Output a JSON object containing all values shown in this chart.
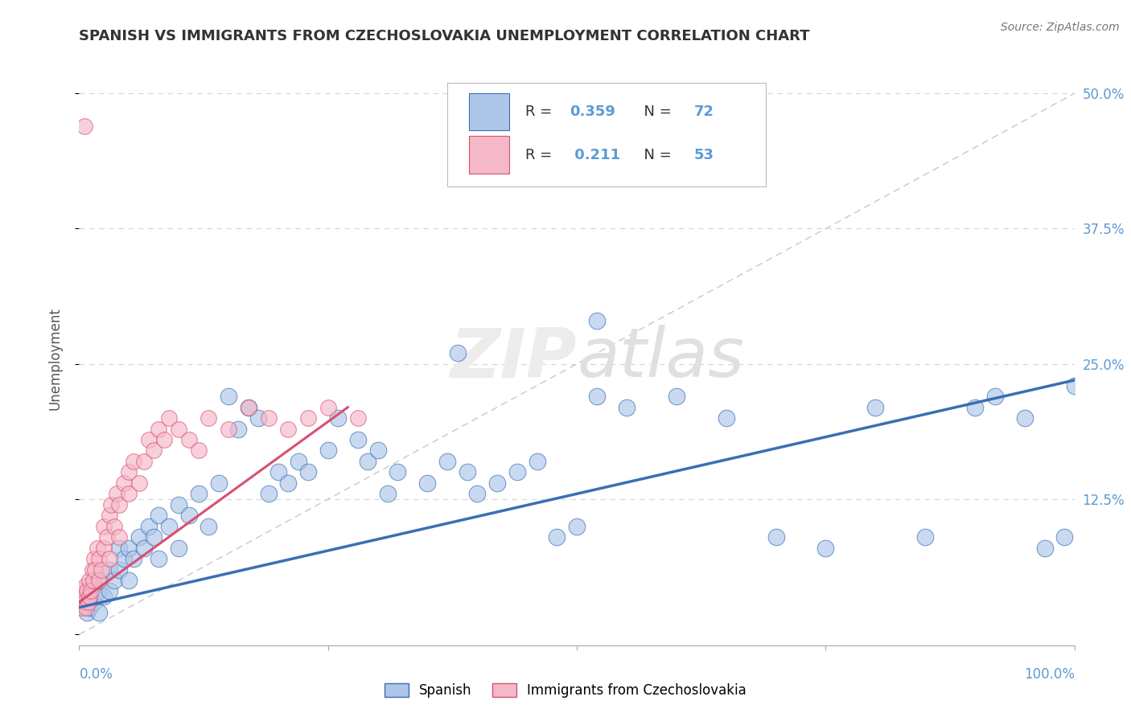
{
  "title": "SPANISH VS IMMIGRANTS FROM CZECHOSLOVAKIA UNEMPLOYMENT CORRELATION CHART",
  "source": "Source: ZipAtlas.com",
  "ylabel": "Unemployment",
  "y_ticks": [
    0.0,
    0.125,
    0.25,
    0.375,
    0.5
  ],
  "y_tick_labels": [
    "",
    "12.5%",
    "25.0%",
    "37.5%",
    "50.0%"
  ],
  "xlim": [
    0.0,
    1.0
  ],
  "ylim": [
    -0.01,
    0.52
  ],
  "blue_R": "0.359",
  "blue_N": "72",
  "pink_R": "0.211",
  "pink_N": "53",
  "blue_color": "#adc6e8",
  "blue_line_color": "#3a6fb5",
  "pink_color": "#f5b8c8",
  "pink_line_color": "#d94f70",
  "axis_label_color": "#5b9bd5",
  "grid_color": "#d5d5d5",
  "ref_line_color": "#c8c8c8",
  "blue_scatter_x": [
    0.005,
    0.008,
    0.01,
    0.01,
    0.015,
    0.018,
    0.02,
    0.02,
    0.025,
    0.03,
    0.03,
    0.035,
    0.04,
    0.04,
    0.045,
    0.05,
    0.05,
    0.055,
    0.06,
    0.065,
    0.07,
    0.075,
    0.08,
    0.08,
    0.09,
    0.1,
    0.1,
    0.11,
    0.12,
    0.13,
    0.14,
    0.15,
    0.16,
    0.17,
    0.18,
    0.19,
    0.2,
    0.21,
    0.22,
    0.23,
    0.25,
    0.26,
    0.28,
    0.29,
    0.3,
    0.31,
    0.32,
    0.35,
    0.37,
    0.39,
    0.4,
    0.42,
    0.44,
    0.46,
    0.48,
    0.5,
    0.52,
    0.55,
    0.6,
    0.65,
    0.7,
    0.75,
    0.8,
    0.85,
    0.9,
    0.92,
    0.95,
    0.97,
    0.99,
    1.0,
    0.52,
    0.38
  ],
  "blue_scatter_y": [
    0.03,
    0.02,
    0.04,
    0.025,
    0.03,
    0.05,
    0.02,
    0.04,
    0.035,
    0.04,
    0.06,
    0.05,
    0.06,
    0.08,
    0.07,
    0.05,
    0.08,
    0.07,
    0.09,
    0.08,
    0.1,
    0.09,
    0.11,
    0.07,
    0.1,
    0.12,
    0.08,
    0.11,
    0.13,
    0.1,
    0.14,
    0.22,
    0.19,
    0.21,
    0.2,
    0.13,
    0.15,
    0.14,
    0.16,
    0.15,
    0.17,
    0.2,
    0.18,
    0.16,
    0.17,
    0.13,
    0.15,
    0.14,
    0.16,
    0.15,
    0.13,
    0.14,
    0.15,
    0.16,
    0.09,
    0.1,
    0.22,
    0.21,
    0.22,
    0.2,
    0.09,
    0.08,
    0.21,
    0.09,
    0.21,
    0.22,
    0.2,
    0.08,
    0.09,
    0.23,
    0.29,
    0.26
  ],
  "pink_scatter_x": [
    0.001,
    0.002,
    0.003,
    0.004,
    0.005,
    0.006,
    0.007,
    0.008,
    0.009,
    0.01,
    0.01,
    0.012,
    0.013,
    0.014,
    0.015,
    0.016,
    0.018,
    0.02,
    0.02,
    0.022,
    0.025,
    0.025,
    0.028,
    0.03,
    0.03,
    0.032,
    0.035,
    0.038,
    0.04,
    0.04,
    0.045,
    0.05,
    0.05,
    0.055,
    0.06,
    0.065,
    0.07,
    0.075,
    0.08,
    0.085,
    0.09,
    0.1,
    0.11,
    0.12,
    0.13,
    0.15,
    0.17,
    0.19,
    0.21,
    0.23,
    0.25,
    0.28,
    0.005
  ],
  "pink_scatter_y": [
    0.03,
    0.04,
    0.025,
    0.035,
    0.03,
    0.045,
    0.025,
    0.04,
    0.03,
    0.035,
    0.05,
    0.04,
    0.06,
    0.05,
    0.07,
    0.06,
    0.08,
    0.05,
    0.07,
    0.06,
    0.08,
    0.1,
    0.09,
    0.11,
    0.07,
    0.12,
    0.1,
    0.13,
    0.09,
    0.12,
    0.14,
    0.13,
    0.15,
    0.16,
    0.14,
    0.16,
    0.18,
    0.17,
    0.19,
    0.18,
    0.2,
    0.19,
    0.18,
    0.17,
    0.2,
    0.19,
    0.21,
    0.2,
    0.19,
    0.2,
    0.21,
    0.2,
    0.47
  ],
  "blue_line_x": [
    0.0,
    1.0
  ],
  "blue_line_y": [
    0.025,
    0.235
  ],
  "pink_line_x": [
    0.0,
    0.27
  ],
  "pink_line_y": [
    0.03,
    0.21
  ],
  "ref_line_x": [
    0.0,
    1.0
  ],
  "ref_line_y": [
    0.0,
    0.5
  ]
}
